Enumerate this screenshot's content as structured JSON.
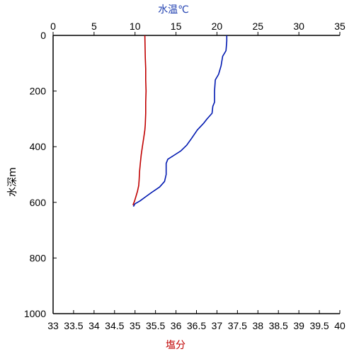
{
  "chart_data": {
    "type": "line",
    "title": "",
    "top_axis": {
      "label": "水温℃",
      "label_color": "#1f3fb0",
      "range": [
        0,
        35
      ],
      "ticks": [
        "0",
        "5",
        "10",
        "15",
        "20",
        "25",
        "30",
        "35"
      ]
    },
    "bottom_axis": {
      "label": "塩分",
      "label_color": "#c00000",
      "range": [
        33,
        40
      ],
      "ticks": [
        "33",
        "33.5",
        "34",
        "34.5",
        "35",
        "35.5",
        "36",
        "36.5",
        "37",
        "37.5",
        "38",
        "38.5",
        "39",
        "39.5",
        "40"
      ]
    },
    "left_axis": {
      "label": "水深m",
      "range": [
        0,
        1000
      ],
      "inverted": true,
      "ticks": [
        "0",
        "200",
        "400",
        "600",
        "800",
        "1000"
      ]
    },
    "grid": false,
    "series": [
      {
        "axis": "top",
        "color": "#0018b0",
        "points": [
          [
            21.2,
            0
          ],
          [
            21.2,
            20
          ],
          [
            21.1,
            55
          ],
          [
            20.7,
            75
          ],
          [
            20.5,
            110
          ],
          [
            20.2,
            140
          ],
          [
            19.8,
            160
          ],
          [
            19.7,
            200
          ],
          [
            19.7,
            240
          ],
          [
            19.5,
            255
          ],
          [
            19.4,
            280
          ],
          [
            18.8,
            300
          ],
          [
            18.4,
            315
          ],
          [
            17.6,
            340
          ],
          [
            16.9,
            370
          ],
          [
            16.3,
            395
          ],
          [
            15.6,
            415
          ],
          [
            14.8,
            430
          ],
          [
            14.0,
            445
          ],
          [
            13.8,
            460
          ],
          [
            13.8,
            500
          ],
          [
            13.6,
            525
          ],
          [
            13.0,
            545
          ],
          [
            12.0,
            565
          ],
          [
            11.3,
            580
          ],
          [
            10.6,
            595
          ],
          [
            10.0,
            605
          ],
          [
            9.8,
            615
          ]
        ]
      },
      {
        "axis": "bottom",
        "color": "#c00000",
        "points": [
          [
            35.24,
            0
          ],
          [
            35.25,
            80
          ],
          [
            35.26,
            120
          ],
          [
            35.26,
            160
          ],
          [
            35.27,
            200
          ],
          [
            35.26,
            240
          ],
          [
            35.26,
            280
          ],
          [
            35.25,
            320
          ],
          [
            35.24,
            340
          ],
          [
            35.21,
            370
          ],
          [
            35.18,
            400
          ],
          [
            35.15,
            430
          ],
          [
            35.13,
            460
          ],
          [
            35.11,
            490
          ],
          [
            35.1,
            520
          ],
          [
            35.09,
            540
          ],
          [
            35.06,
            560
          ],
          [
            35.02,
            580
          ],
          [
            34.99,
            595
          ],
          [
            34.95,
            610
          ]
        ]
      }
    ]
  }
}
